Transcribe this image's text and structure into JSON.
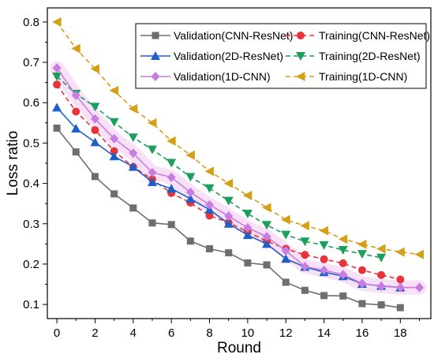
{
  "chart_data": {
    "type": "line",
    "xlabel": "Round",
    "ylabel": "Loss ratio",
    "xlim": [
      -0.5,
      19.6
    ],
    "ylim": [
      0.065,
      0.835
    ],
    "xticks": [
      0,
      2,
      4,
      6,
      8,
      10,
      12,
      14,
      16,
      18
    ],
    "xtick_labels": [
      "0",
      "2",
      "4",
      "6",
      "8",
      "10",
      "12",
      "14",
      "16",
      "18"
    ],
    "yticks": [
      0.1,
      0.2,
      0.3,
      0.4,
      0.5,
      0.6,
      0.7,
      0.8
    ],
    "ytick_labels": [
      "0.1",
      "0.2",
      "0.3",
      "0.4",
      "0.5",
      "0.6",
      "0.7",
      "0.8"
    ],
    "grid": false,
    "legend_position": "top-right",
    "series": [
      {
        "name": "Validation(CNN-ResNet)",
        "color": "#6e6e6e",
        "marker": "square",
        "dash": "solid",
        "x": [
          0,
          1,
          2,
          3,
          4,
          5,
          6,
          7,
          8,
          9,
          10,
          11,
          12,
          13,
          14,
          15,
          16,
          17,
          18
        ],
        "values": [
          0.537,
          0.478,
          0.417,
          0.374,
          0.339,
          0.302,
          0.298,
          0.257,
          0.238,
          0.228,
          0.203,
          0.198,
          0.155,
          0.135,
          0.122,
          0.121,
          0.102,
          0.099,
          0.092
        ]
      },
      {
        "name": "Training(CNN-ResNet)",
        "color": "#e8333a",
        "marker": "circle",
        "dash": "dash",
        "x": [
          0,
          1,
          2,
          3,
          4,
          5,
          6,
          7,
          8,
          9,
          10,
          11,
          12,
          13,
          14,
          15,
          16,
          17,
          18
        ],
        "values": [
          0.645,
          0.578,
          0.532,
          0.48,
          0.441,
          0.41,
          0.376,
          0.352,
          0.32,
          0.303,
          0.28,
          0.257,
          0.238,
          0.223,
          0.212,
          0.202,
          0.185,
          0.173,
          0.162
        ]
      },
      {
        "name": "Validation(2D-ResNet)",
        "color": "#1f5fc8",
        "marker": "triangle-up",
        "dash": "solid",
        "x": [
          0,
          1,
          2,
          3,
          4,
          5,
          6,
          7,
          8,
          9,
          10,
          11,
          12,
          13,
          14,
          15,
          16,
          17,
          18
        ],
        "values": [
          0.588,
          0.536,
          0.502,
          0.467,
          0.441,
          0.403,
          0.387,
          0.362,
          0.335,
          0.3,
          0.272,
          0.25,
          0.213,
          0.193,
          0.18,
          0.17,
          0.151,
          0.146,
          0.142
        ]
      },
      {
        "name": "Training(2D-ResNet)",
        "color": "#1c9e5c",
        "marker": "triangle-down",
        "dash": "dash",
        "x": [
          0,
          1,
          2,
          3,
          4,
          5,
          6,
          7,
          8,
          9,
          10,
          11,
          12,
          13,
          14,
          15,
          16,
          17
        ],
        "values": [
          0.665,
          0.622,
          0.59,
          0.552,
          0.514,
          0.484,
          0.451,
          0.416,
          0.388,
          0.357,
          0.325,
          0.297,
          0.273,
          0.256,
          0.247,
          0.235,
          0.225,
          0.216
        ]
      },
      {
        "name": "Validation(1D-CNN)",
        "color": "#c77ee0",
        "marker": "diamond",
        "dash": "solid",
        "x": [
          0,
          1,
          2,
          3,
          4,
          5,
          6,
          7,
          8,
          9,
          10,
          11,
          12,
          13,
          14,
          15,
          16,
          17,
          18,
          19
        ],
        "values": [
          0.686,
          0.618,
          0.56,
          0.511,
          0.475,
          0.427,
          0.415,
          0.378,
          0.347,
          0.319,
          0.29,
          0.268,
          0.233,
          0.194,
          0.185,
          0.174,
          0.152,
          0.145,
          0.142,
          0.142
        ]
      },
      {
        "name": "Training(1D-CNN)",
        "color": "#d4a017",
        "marker": "triangle-left",
        "dash": "dash",
        "x": [
          0,
          1,
          2,
          3,
          4,
          5,
          6,
          7,
          8,
          9,
          10,
          11,
          12,
          13,
          14,
          15,
          16,
          17,
          18,
          19
        ],
        "values": [
          0.8,
          0.734,
          0.684,
          0.63,
          0.585,
          0.55,
          0.505,
          0.47,
          0.43,
          0.4,
          0.37,
          0.34,
          0.31,
          0.295,
          0.283,
          0.262,
          0.249,
          0.238,
          0.23,
          0.224
        ]
      }
    ],
    "legend_layout": [
      [
        "Validation(CNN-ResNet)",
        "Training(CNN-ResNet)"
      ],
      [
        "Validation(2D-ResNet)",
        "Training(2D-ResNet)"
      ],
      [
        "Validation(1D-CNN)",
        "Training(1D-CNN)"
      ]
    ]
  }
}
